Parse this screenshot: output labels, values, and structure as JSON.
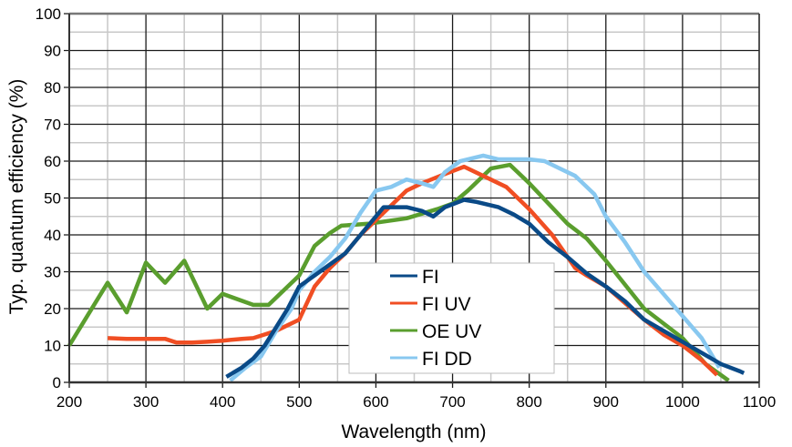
{
  "chart_data": {
    "type": "line",
    "title": "",
    "xlabel": "Wavelength (nm)",
    "ylabel": "Typ. quantum efficiency (%)",
    "xlim": [
      200,
      1100
    ],
    "ylim": [
      0,
      100
    ],
    "xticks": [
      200,
      300,
      400,
      500,
      600,
      700,
      800,
      900,
      1000,
      1100
    ],
    "yticks": [
      0,
      10,
      20,
      30,
      40,
      50,
      60,
      70,
      80,
      90,
      100
    ],
    "x_minor_step": 50,
    "y_minor_step": 5,
    "grid": true,
    "legend_position": "center-bottom",
    "series": [
      {
        "name": "FI",
        "color": "#0a4a87",
        "points": [
          [
            405,
            1.5
          ],
          [
            425,
            4
          ],
          [
            440,
            6.5
          ],
          [
            455,
            10
          ],
          [
            470,
            15
          ],
          [
            485,
            20
          ],
          [
            500,
            26
          ],
          [
            520,
            29
          ],
          [
            540,
            32
          ],
          [
            560,
            35
          ],
          [
            580,
            40
          ],
          [
            600,
            45
          ],
          [
            610,
            47.5
          ],
          [
            640,
            47.5
          ],
          [
            660,
            46.5
          ],
          [
            675,
            45
          ],
          [
            690,
            47.5
          ],
          [
            715,
            49.5
          ],
          [
            730,
            49
          ],
          [
            760,
            47.5
          ],
          [
            780,
            45.5
          ],
          [
            800,
            43
          ],
          [
            825,
            38
          ],
          [
            850,
            34
          ],
          [
            875,
            29.5
          ],
          [
            900,
            26
          ],
          [
            925,
            22
          ],
          [
            950,
            17
          ],
          [
            975,
            14
          ],
          [
            1000,
            11
          ],
          [
            1025,
            8
          ],
          [
            1050,
            5
          ],
          [
            1075,
            3
          ],
          [
            1080,
            2.5
          ]
        ]
      },
      {
        "name": "FI UV",
        "color": "#f04e23",
        "points": [
          [
            250,
            12
          ],
          [
            275,
            11.8
          ],
          [
            300,
            11.8
          ],
          [
            325,
            11.8
          ],
          [
            340,
            10.8
          ],
          [
            360,
            10.8
          ],
          [
            380,
            11
          ],
          [
            400,
            11.3
          ],
          [
            425,
            11.8
          ],
          [
            440,
            12
          ],
          [
            455,
            13
          ],
          [
            470,
            14
          ],
          [
            485,
            15.5
          ],
          [
            500,
            17
          ],
          [
            520,
            26
          ],
          [
            540,
            31
          ],
          [
            560,
            35
          ],
          [
            580,
            40
          ],
          [
            600,
            44
          ],
          [
            620,
            48
          ],
          [
            640,
            52
          ],
          [
            660,
            54
          ],
          [
            690,
            56.5
          ],
          [
            715,
            58.5
          ],
          [
            740,
            56
          ],
          [
            770,
            53
          ],
          [
            800,
            47
          ],
          [
            830,
            40
          ],
          [
            860,
            31
          ],
          [
            875,
            29
          ],
          [
            900,
            26
          ],
          [
            925,
            21.5
          ],
          [
            950,
            17
          ],
          [
            975,
            13
          ],
          [
            1000,
            10
          ],
          [
            1025,
            6
          ],
          [
            1045,
            2
          ]
        ]
      },
      {
        "name": "OE UV",
        "color": "#5a9e2e",
        "points": [
          [
            200,
            10
          ],
          [
            225,
            18.5
          ],
          [
            250,
            27
          ],
          [
            275,
            19
          ],
          [
            300,
            32.5
          ],
          [
            325,
            27
          ],
          [
            350,
            33
          ],
          [
            380,
            20
          ],
          [
            400,
            24
          ],
          [
            440,
            21
          ],
          [
            460,
            21
          ],
          [
            480,
            25
          ],
          [
            500,
            29
          ],
          [
            520,
            37
          ],
          [
            540,
            40.5
          ],
          [
            555,
            42.5
          ],
          [
            590,
            43
          ],
          [
            640,
            44.5
          ],
          [
            680,
            47
          ],
          [
            700,
            48.5
          ],
          [
            720,
            52
          ],
          [
            750,
            58
          ],
          [
            775,
            59
          ],
          [
            800,
            54
          ],
          [
            825,
            48.5
          ],
          [
            850,
            43
          ],
          [
            875,
            39
          ],
          [
            900,
            33
          ],
          [
            950,
            20
          ],
          [
            1000,
            12
          ],
          [
            1030,
            5
          ],
          [
            1060,
            0.5
          ]
        ]
      },
      {
        "name": "FI DD",
        "color": "#88c8f0",
        "points": [
          [
            410,
            0.5
          ],
          [
            430,
            4
          ],
          [
            450,
            7
          ],
          [
            470,
            14
          ],
          [
            490,
            20
          ],
          [
            500,
            25
          ],
          [
            520,
            30
          ],
          [
            540,
            34
          ],
          [
            560,
            39
          ],
          [
            580,
            46
          ],
          [
            600,
            52
          ],
          [
            620,
            53
          ],
          [
            640,
            55
          ],
          [
            660,
            54
          ],
          [
            675,
            53
          ],
          [
            690,
            57
          ],
          [
            710,
            60
          ],
          [
            740,
            61.5
          ],
          [
            760,
            60.5
          ],
          [
            800,
            60.5
          ],
          [
            820,
            60
          ],
          [
            840,
            58
          ],
          [
            860,
            56
          ],
          [
            885,
            51
          ],
          [
            900,
            45
          ],
          [
            925,
            38
          ],
          [
            950,
            30
          ],
          [
            975,
            24
          ],
          [
            1000,
            18
          ],
          [
            1025,
            12
          ],
          [
            1048,
            4
          ]
        ]
      }
    ]
  }
}
